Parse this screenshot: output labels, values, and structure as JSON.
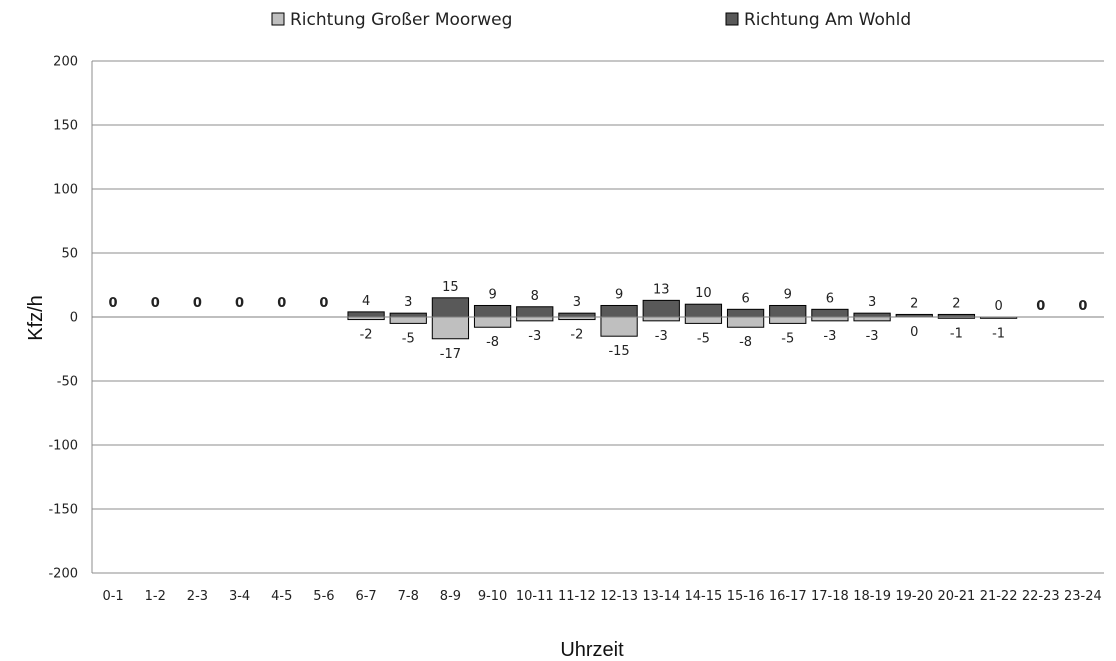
{
  "chart_data": {
    "type": "bar",
    "title": "",
    "xlabel": "Uhrzeit",
    "ylabel": "Kfz/h",
    "ylim": [
      -200,
      200
    ],
    "yticks": [
      200,
      150,
      100,
      50,
      0,
      -50,
      -100,
      -150,
      -200
    ],
    "grid": true,
    "legend_position": "top",
    "categories": [
      "0-1",
      "1-2",
      "2-3",
      "3-4",
      "4-5",
      "5-6",
      "6-7",
      "7-8",
      "8-9",
      "9-10",
      "10-11",
      "11-12",
      "12-13",
      "13-14",
      "14-15",
      "15-16",
      "16-17",
      "17-18",
      "18-19",
      "19-20",
      "20-21",
      "21-22",
      "22-23",
      "23-24"
    ],
    "series": [
      {
        "name": "Richtung Großer Moorweg",
        "color": "#bfbfbf",
        "values": [
          0,
          0,
          0,
          0,
          0,
          0,
          -2,
          -5,
          -17,
          -8,
          -3,
          -2,
          -15,
          -3,
          -5,
          -8,
          -5,
          -3,
          -3,
          0,
          -1,
          -1,
          0,
          0
        ],
        "labels": [
          "",
          "",
          "",
          "",
          "",
          "",
          "-2",
          "-5",
          "-17",
          "-8",
          "-3",
          "-2",
          "-15",
          "-3",
          "-5",
          "-8",
          "-5",
          "-3",
          "-3",
          "0",
          "-1",
          "-1",
          "",
          ""
        ]
      },
      {
        "name": "Richtung Am Wohld",
        "color": "#595959",
        "values": [
          0,
          0,
          0,
          0,
          0,
          0,
          4,
          3,
          15,
          9,
          8,
          3,
          9,
          13,
          10,
          6,
          9,
          6,
          3,
          2,
          2,
          0,
          0,
          0
        ],
        "labels": [
          "0",
          "0",
          "0",
          "0",
          "0",
          "0",
          "4",
          "3",
          "15",
          "9",
          "8",
          "3",
          "9",
          "13",
          "10",
          "6",
          "9",
          "6",
          "3",
          "2",
          "2",
          "0",
          "0",
          "0"
        ]
      }
    ]
  }
}
